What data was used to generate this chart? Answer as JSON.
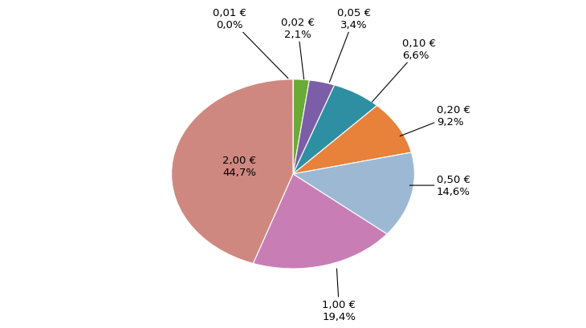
{
  "values": [
    0.05,
    2.1,
    3.4,
    6.6,
    9.2,
    14.6,
    19.4,
    44.7
  ],
  "colors": [
    "#a93226",
    "#6aaa36",
    "#7b5ea7",
    "#2e8fa3",
    "#e8813a",
    "#9db8d2",
    "#c97db5",
    "#cf8880"
  ],
  "slice_labels": [
    "0,01 €",
    "0,02 €",
    "0,05 €",
    "0,10 €",
    "0,20 €",
    "0,50 €",
    "1,00 €",
    "2,00 €"
  ],
  "slice_pcts": [
    "0,0%",
    "2,1%",
    "3,4%",
    "6,6%",
    "9,2%",
    "14,6%",
    "19,4%",
    "44,7%"
  ],
  "background_color": "#ffffff",
  "font_size": 9.5
}
